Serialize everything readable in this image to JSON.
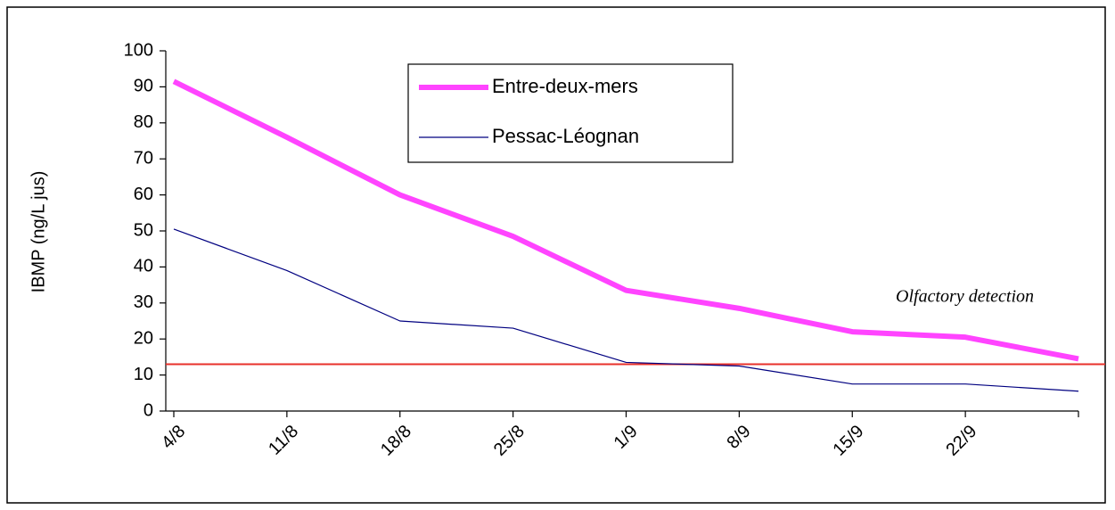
{
  "chart_data": {
    "type": "line",
    "y_label": "IBMP (ng/L jus)",
    "categories": [
      "4/8",
      "11/8",
      "18/8",
      "25/8",
      "1/9",
      "8/9",
      "15/9",
      "22/9",
      null
    ],
    "series": [
      {
        "name": "Entre-deux-mers",
        "color": "#ff44ff",
        "values": [
          91.5,
          76,
          60,
          48.5,
          33.5,
          28.5,
          22,
          20.5,
          14.5
        ]
      },
      {
        "name": "Pessac-Léognan",
        "color": "#000080",
        "values": [
          50.5,
          39,
          25,
          23,
          13.5,
          12.5,
          7.5,
          7.5,
          5.5
        ]
      }
    ],
    "threshold": {
      "value": 13,
      "label": "Olfactory detection",
      "color": "#e8302a"
    },
    "ylim": [
      0,
      100
    ],
    "yticks": [
      0,
      10,
      20,
      30,
      40,
      50,
      60,
      70,
      80,
      90,
      100
    ],
    "grid": false,
    "legend": "top"
  }
}
